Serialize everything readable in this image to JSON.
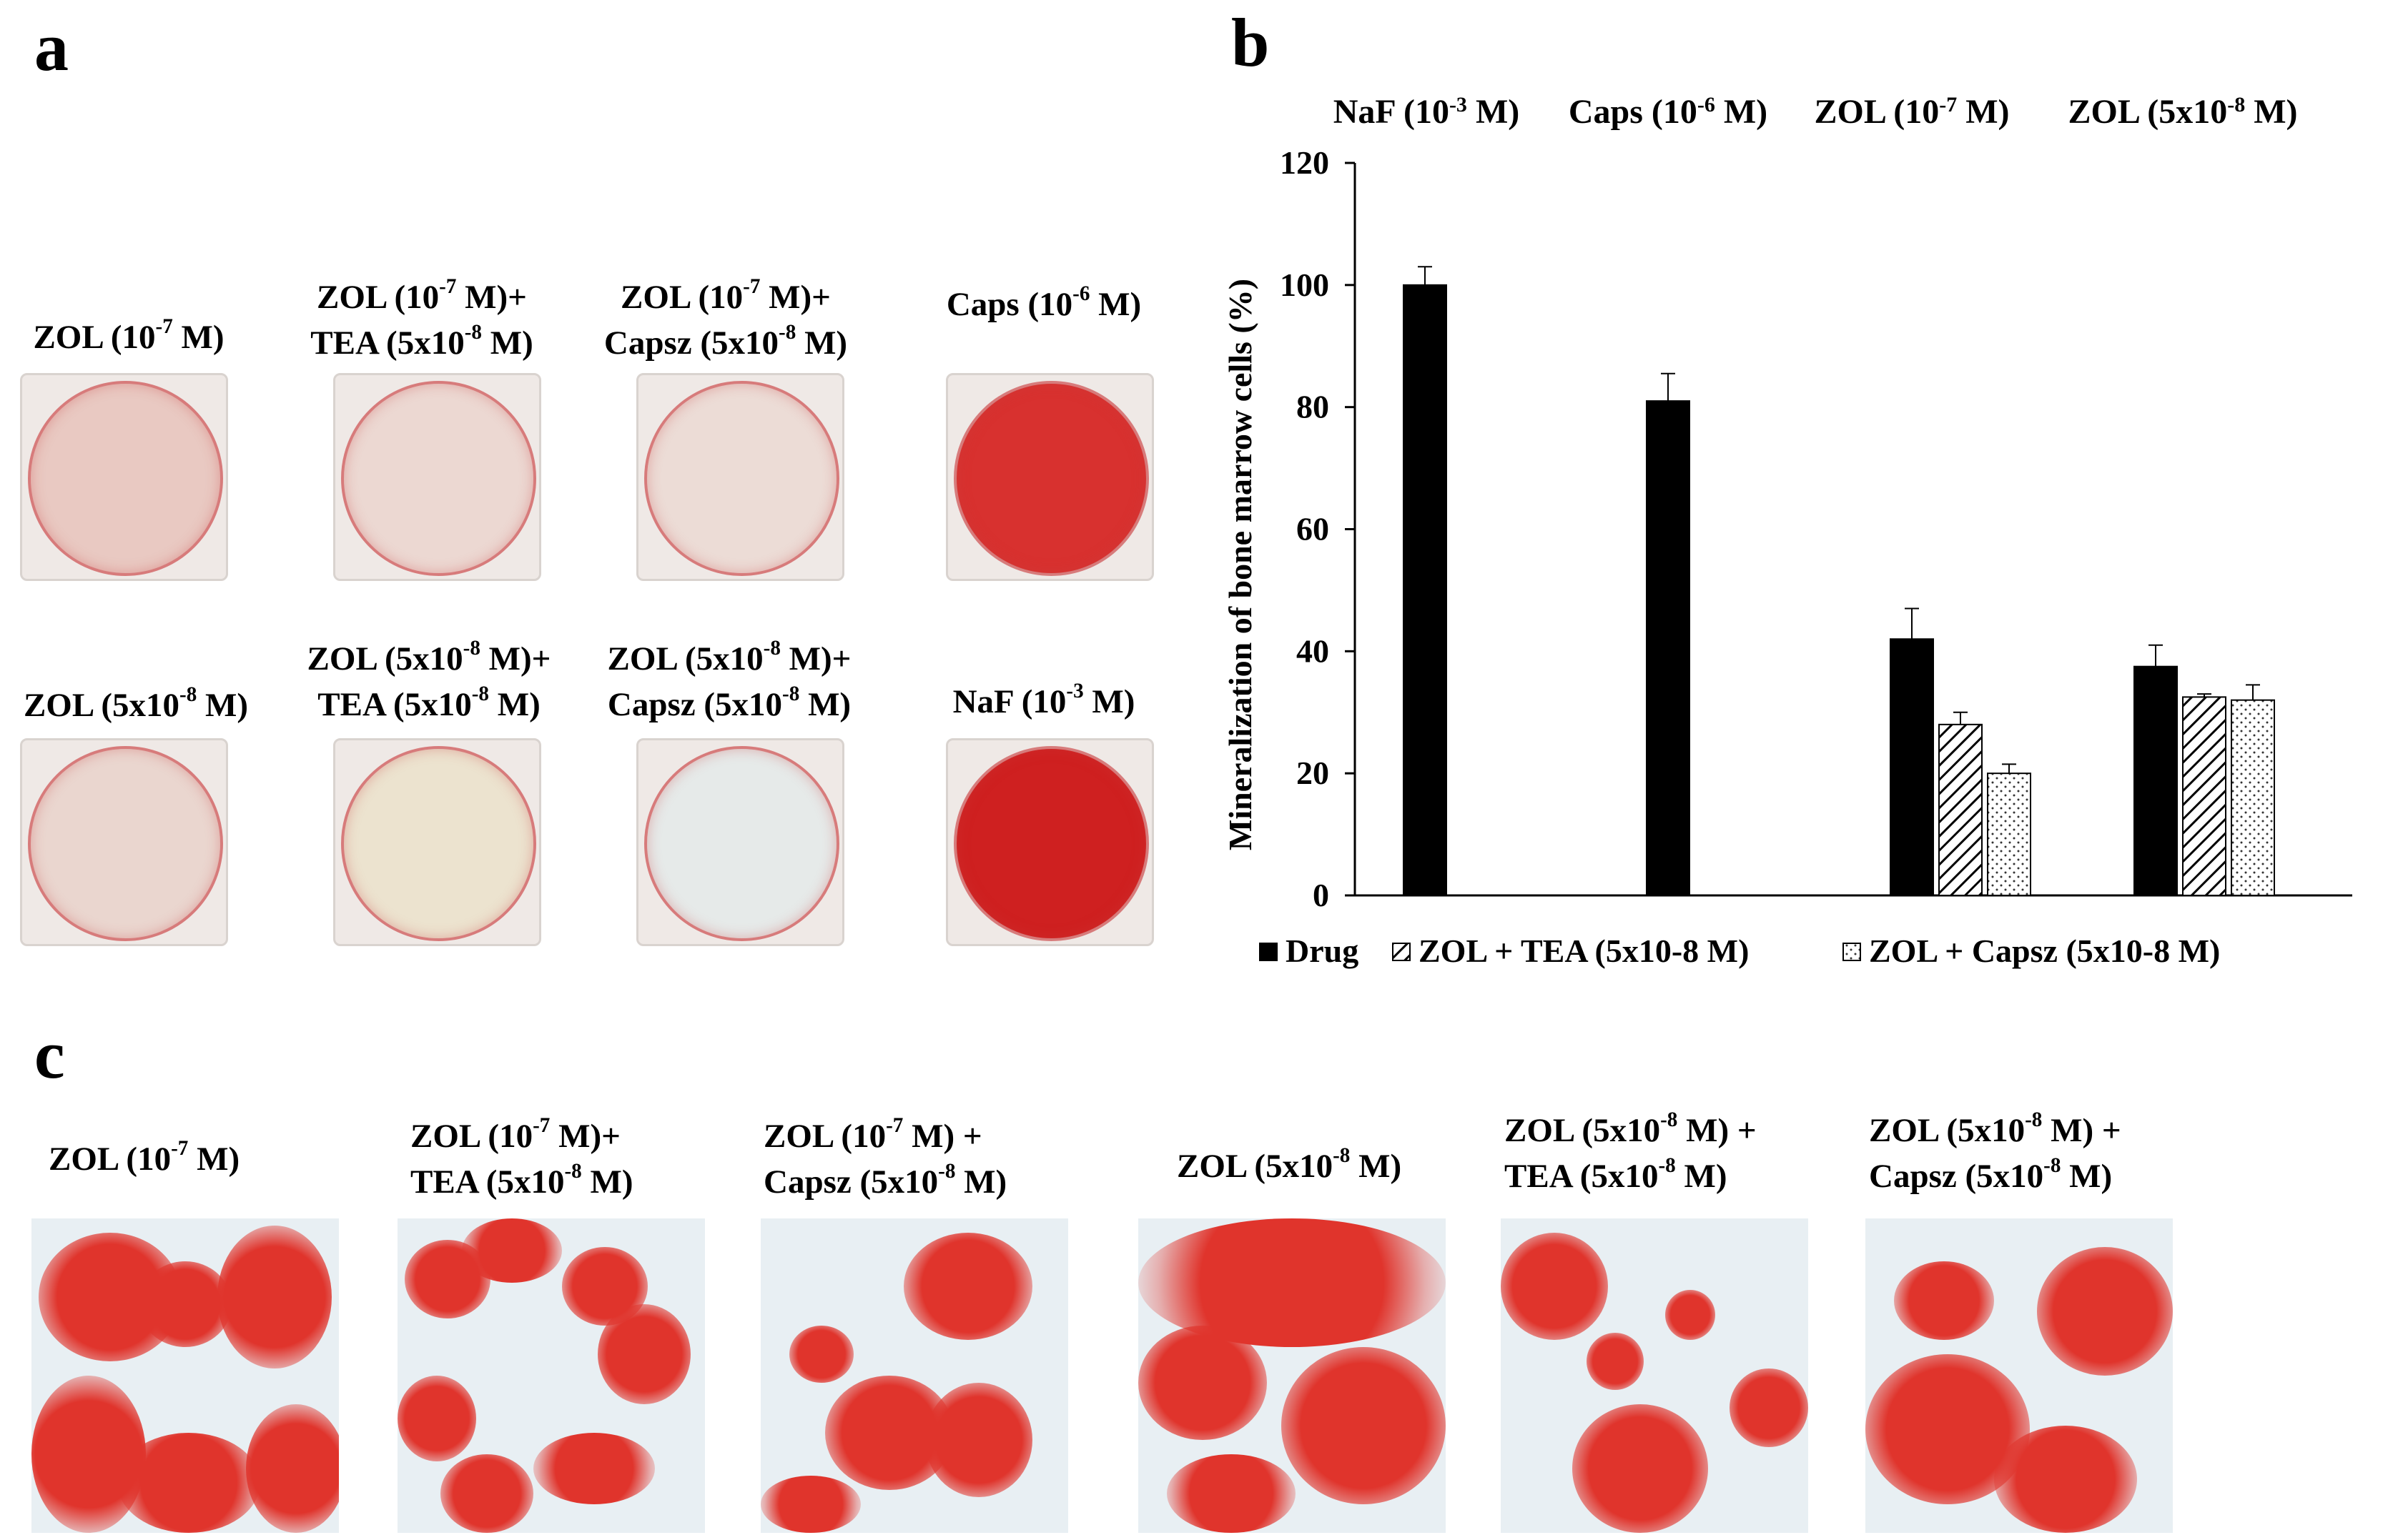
{
  "panels": {
    "a": "a",
    "b": "b",
    "c": "c"
  },
  "panel_a": {
    "top_row": [
      {
        "line1": [
          "ZOL (10",
          "-7",
          " M)"
        ],
        "line2": null
      },
      {
        "line1": [
          "ZOL (10",
          "-7",
          " M)+"
        ],
        "line2": [
          "TEA (5x10",
          "-8",
          " M)"
        ]
      },
      {
        "line1": [
          "ZOL (10",
          "-7",
          " M)+"
        ],
        "line2": [
          "Capsz (5x10",
          "-8",
          " M)"
        ]
      },
      {
        "line1": [
          "Caps (10",
          "-6",
          " M)"
        ],
        "line2": null
      }
    ],
    "bottom_row": [
      {
        "line1": [
          "ZOL (5x10",
          "-8",
          " M)"
        ],
        "line2": null
      },
      {
        "line1": [
          "ZOL (5x10",
          "-8",
          " M)+"
        ],
        "line2": [
          "TEA (5x10",
          "-8",
          " M)"
        ]
      },
      {
        "line1": [
          "ZOL (5x10",
          "-8",
          " M)+"
        ],
        "line2": [
          "Capsz (5x10",
          "-8",
          " M)"
        ]
      },
      {
        "line1": [
          "NaF (10",
          "-3",
          " M)"
        ],
        "line2": null
      }
    ],
    "dish_stain_colors": [
      "#e9c9c2",
      "#ecd8d2",
      "#ecdcd6",
      "#d8312f",
      "#ead6cf",
      "#ece3cf",
      "#e6eae9",
      "#cf2020"
    ]
  },
  "panel_c": {
    "captions": [
      {
        "line1": [
          "ZOL (10",
          "-7",
          " M)"
        ],
        "line2": null
      },
      {
        "line1": [
          "ZOL (10",
          "-7",
          " M)+"
        ],
        "line2": [
          "TEA (5x10",
          "-8",
          " M)"
        ]
      },
      {
        "line1": [
          "ZOL (10",
          "-7",
          " M) +"
        ],
        "line2": [
          "Capsz (5x10",
          "-8",
          " M)"
        ]
      },
      {
        "line1": [
          "ZOL (5x10",
          "-8",
          " M)"
        ],
        "line2": null
      },
      {
        "line1": [
          "ZOL (5x10",
          "-8",
          " M) +"
        ],
        "line2": [
          "TEA (5x10",
          "-8",
          " M)"
        ]
      },
      {
        "line1": [
          "ZOL (5x10",
          "-8",
          " M) +"
        ],
        "line2": [
          "Capsz (5x10",
          "-8",
          " M)"
        ]
      }
    ],
    "stain_color": "#e0342c",
    "background_color": "#e8eff3"
  },
  "chart_data": {
    "type": "bar",
    "group_labels": [
      [
        "NaF (10",
        "-3",
        " M)"
      ],
      [
        "Caps (10",
        "-6",
        " M)"
      ],
      [
        "ZOL (10",
        "-7",
        " M)"
      ],
      [
        "ZOL (5x10",
        "-8",
        " M)"
      ]
    ],
    "series": [
      {
        "name": "Drug",
        "values": [
          100,
          81,
          42,
          37.5
        ],
        "errors": [
          3,
          4.5,
          5,
          3.5
        ],
        "fill": "solid"
      },
      {
        "name": "ZOL + TEA (5x10-8 M)",
        "values": [
          null,
          null,
          28,
          32.5
        ],
        "errors": [
          null,
          null,
          2,
          0.5
        ],
        "fill": "hatch"
      },
      {
        "name": "ZOL + Capsz (5x10-8 M)",
        "values": [
          null,
          null,
          20,
          32
        ],
        "errors": [
          null,
          null,
          1.5,
          2.5
        ],
        "fill": "dots"
      }
    ],
    "ylabel": "Mineralization of bone marrow cells (%)",
    "ylim": [
      0,
      120
    ],
    "yticks": [
      0,
      20,
      40,
      60,
      80,
      100,
      120
    ],
    "legend_position": "bottom"
  }
}
